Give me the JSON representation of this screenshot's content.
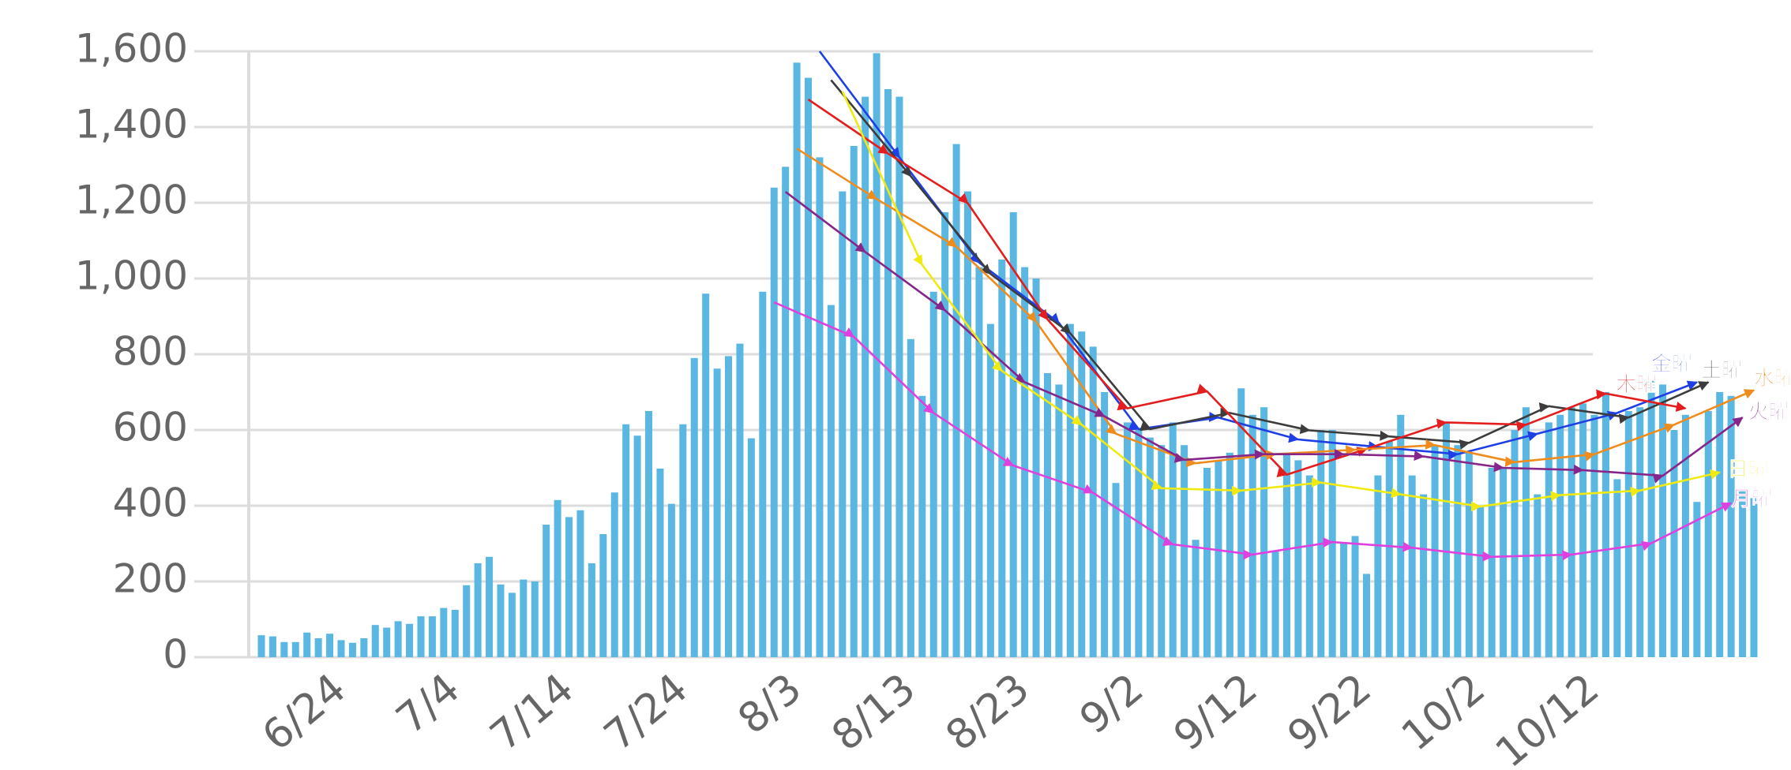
{
  "chart_data": {
    "type": "bar",
    "color": "#5ab7e2",
    "grid": true,
    "ylim": [
      0,
      1600
    ],
    "yticks": [
      0,
      200,
      400,
      600,
      800,
      {
        "value": 1000,
        "label": "1,000"
      },
      {
        "value": 1200,
        "label": "1,200"
      },
      {
        "value": 1400,
        "label": "1,400"
      },
      {
        "value": 1600,
        "label": "1,600"
      }
    ],
    "categories": [
      null,
      null,
      null,
      null,
      null,
      null,
      null,
      "6/24",
      null,
      null,
      null,
      null,
      null,
      null,
      null,
      null,
      null,
      "7/4",
      null,
      null,
      null,
      null,
      null,
      null,
      null,
      null,
      null,
      "7/14",
      null,
      null,
      null,
      null,
      null,
      null,
      null,
      null,
      null,
      "7/24",
      null,
      null,
      null,
      null,
      null,
      null,
      null,
      null,
      null,
      "8/3",
      null,
      null,
      null,
      null,
      null,
      null,
      null,
      null,
      null,
      "8/13",
      null,
      null,
      null,
      null,
      null,
      null,
      null,
      null,
      null,
      "8/23",
      null,
      null,
      null,
      null,
      null,
      null,
      null,
      null,
      null,
      "9/2",
      null,
      null,
      null,
      null,
      null,
      null,
      null,
      null,
      null,
      "9/12",
      null,
      null,
      null,
      null,
      null,
      null,
      null,
      null,
      null,
      "9/22",
      null,
      null,
      null,
      null,
      null,
      null,
      null,
      null,
      null,
      "10/2",
      null,
      null,
      null,
      null,
      null,
      null,
      null,
      null,
      null,
      "10/12",
      null,
      null,
      null,
      null,
      null,
      null,
      null,
      null,
      null,
      null,
      null,
      null,
      null,
      null
    ],
    "values": [
      58,
      55,
      40,
      40,
      65,
      50,
      62,
      45,
      38,
      50,
      85,
      78,
      95,
      88,
      108,
      108,
      130,
      125,
      190,
      248,
      265,
      192,
      170,
      205,
      200,
      350,
      415,
      370,
      388,
      248,
      325,
      435,
      615,
      585,
      650,
      498,
      405,
      615,
      790,
      960,
      762,
      795,
      828,
      578,
      965,
      1240,
      1295,
      1570,
      1530,
      1320,
      930,
      1230,
      1350,
      1480,
      1595,
      1500,
      1480,
      840,
      690,
      965,
      1175,
      1355,
      1230,
      1030,
      880,
      1050,
      1175,
      1030,
      1000,
      750,
      720,
      880,
      860,
      820,
      700,
      460,
      620,
      600,
      580,
      560,
      620,
      560,
      310,
      500,
      520,
      540,
      710,
      640,
      660,
      280,
      540,
      520,
      480,
      600,
      600,
      300,
      320,
      220,
      480,
      570,
      640,
      480,
      430,
      560,
      620,
      560,
      540,
      400,
      500,
      500,
      600,
      660,
      430,
      620,
      640,
      660,
      670,
      640,
      700,
      470,
      650,
      660,
      730,
      720,
      600,
      640,
      410,
      650,
      700,
      690,
      440,
      420
    ],
    "series": [
      {
        "name": "金曜",
        "color": "#1f3fe6",
        "x": [
          "8/5",
          "8/12",
          "8/19",
          "8/26",
          "9/2",
          "9/9",
          "9/16",
          "9/23",
          "9/30",
          "10/7",
          "10/14",
          "10/21"
        ],
        "values": [
          1600,
          1320,
          1042,
          883,
          602,
          633,
          575,
          555,
          536,
          590,
          645,
          726
        ]
      },
      {
        "name": "土曜",
        "color": "#3c3c3c",
        "x": [
          "8/6",
          "8/13",
          "8/20",
          "8/27",
          "9/3",
          "9/10",
          "9/17",
          "9/24",
          "10/1",
          "10/8",
          "10/15",
          "10/22"
        ],
        "values": [
          1524,
          1270,
          1012,
          855,
          602,
          645,
          599,
          583,
          566,
          663,
          633,
          726
        ]
      },
      {
        "name": "木曜",
        "color": "#e41e1e",
        "x": [
          "8/4",
          "8/11",
          "8/18",
          "8/25",
          "9/1",
          "9/8",
          "9/15",
          "9/22",
          "9/29",
          "10/6",
          "10/13",
          "10/20"
        ],
        "values": [
          1473,
          1330,
          1199,
          892,
          657,
          702,
          482,
          550,
          620,
          614,
          696,
          657
        ]
      },
      {
        "name": "水曜",
        "color": "#ef8c1c",
        "x": [
          "8/3",
          "8/10",
          "8/17",
          "8/24",
          "8/31",
          "9/7",
          "9/14",
          "9/21",
          "9/28",
          "10/5",
          "10/12",
          "10/19",
          "10/26"
        ],
        "values": [
          1343,
          1210,
          1084,
          886,
          590,
          512,
          536,
          548,
          560,
          515,
          536,
          614,
          705
        ]
      },
      {
        "name": "火曜",
        "color": "#86268c",
        "x": [
          "8/2",
          "8/9",
          "8/16",
          "8/23",
          "8/30",
          "9/6",
          "9/13",
          "9/20",
          "9/27",
          "10/4",
          "10/11",
          "10/18",
          "10/25"
        ],
        "values": [
          1229,
          1070,
          916,
          726,
          636,
          521,
          536,
          536,
          530,
          500,
          494,
          479,
          633
        ]
      },
      {
        "name": "日曜",
        "color": "#f0ea10",
        "x": [
          "8/7",
          "8/14",
          "8/21",
          "8/28",
          "9/4",
          "9/11",
          "9/18",
          "9/25",
          "10/2",
          "10/9",
          "10/16",
          "10/23"
        ],
        "values": [
          1494,
          1036,
          756,
          614,
          446,
          440,
          461,
          430,
          398,
          428,
          440,
          488
        ]
      },
      {
        "name": "月曜",
        "color": "#e040e0",
        "x": [
          "8/1",
          "8/8",
          "8/15",
          "8/22",
          "8/29",
          "9/5",
          "9/12",
          "9/19",
          "9/26",
          "10/3",
          "10/10",
          "10/17",
          "10/24"
        ],
        "values": [
          937,
          846,
          645,
          506,
          434,
          298,
          271,
          304,
          289,
          265,
          271,
          301,
          407
        ]
      }
    ]
  }
}
